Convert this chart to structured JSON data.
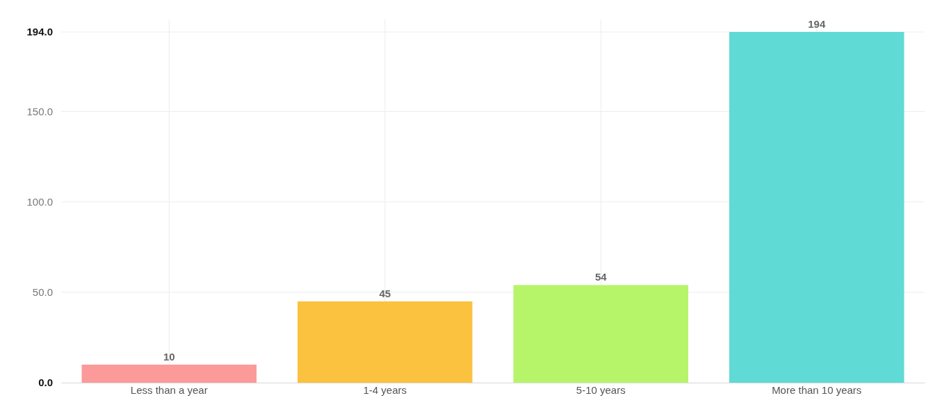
{
  "chart_data": {
    "type": "bar",
    "categories": [
      "Less than a year",
      "1-4 years",
      "5-10 years",
      "More than 10 years"
    ],
    "values": [
      10,
      45,
      54,
      194
    ],
    "colors": [
      "#fc9a9a",
      "#fbc23f",
      "#b6f46a",
      "#5fdad5"
    ],
    "ylim": [
      0,
      194
    ],
    "yticks": [
      {
        "value": 0,
        "label": "0.0"
      },
      {
        "value": 50,
        "label": "50.0"
      },
      {
        "value": 100,
        "label": "100.0"
      },
      {
        "value": 150,
        "label": "150.0"
      },
      {
        "value": 194,
        "label": "194.0"
      }
    ],
    "grid": true,
    "data_labels": true
  }
}
